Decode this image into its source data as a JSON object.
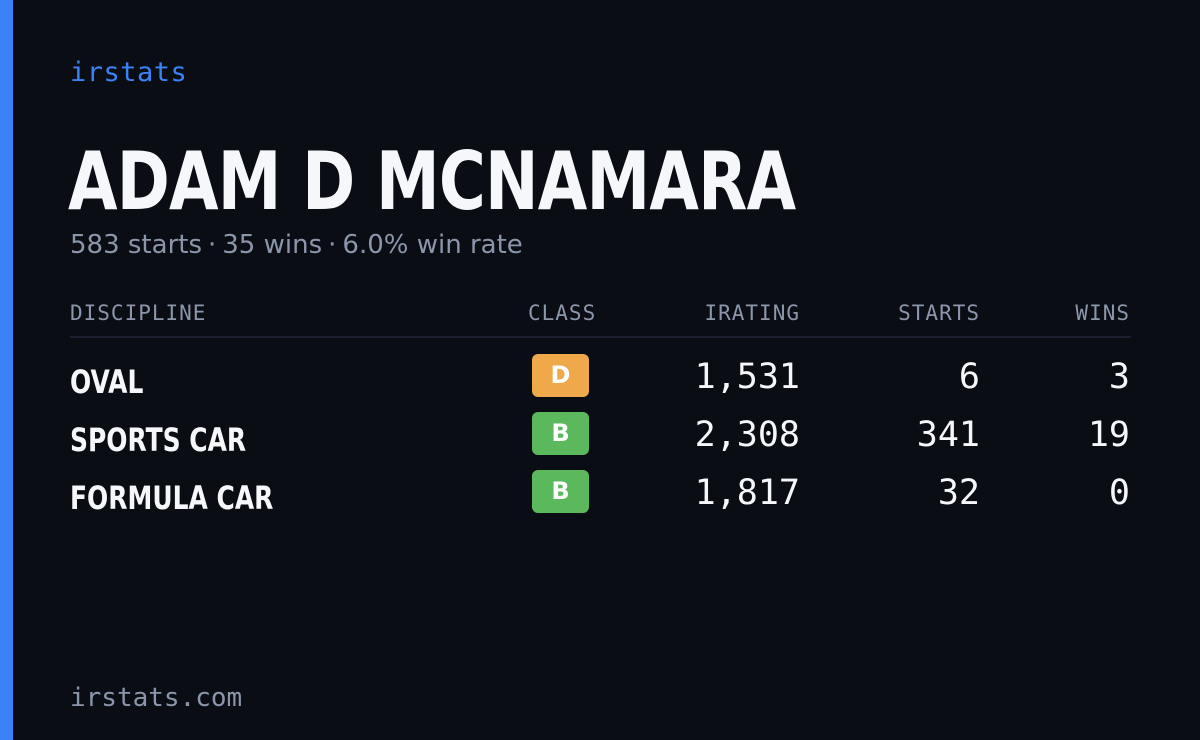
{
  "brand": {
    "name": "irstats"
  },
  "driver": {
    "name": "ADAM D MCNAMARA",
    "summary": {
      "starts": "583 starts",
      "wins": "35 wins",
      "win_rate": "6.0% win rate",
      "separator": "·"
    }
  },
  "table": {
    "headers": {
      "discipline": "DISCIPLINE",
      "class": "CLASS",
      "irating": "IRATING",
      "starts": "STARTS",
      "wins": "WINS"
    },
    "rows": [
      {
        "discipline": "OVAL",
        "class": "D",
        "class_color": "#efa84a",
        "irating": "1,531",
        "starts": "6",
        "wins": "3"
      },
      {
        "discipline": "SPORTS CAR",
        "class": "B",
        "class_color": "#5cb85c",
        "irating": "2,308",
        "starts": "341",
        "wins": "19"
      },
      {
        "discipline": "FORMULA CAR",
        "class": "B",
        "class_color": "#5cb85c",
        "irating": "1,817",
        "starts": "32",
        "wins": "0"
      }
    ]
  },
  "footer": {
    "site": "irstats.com"
  },
  "colors": {
    "background": "#0a0d14",
    "accent": "#3b82f6",
    "text": "#f5f7fb",
    "muted": "#8c96ab"
  }
}
